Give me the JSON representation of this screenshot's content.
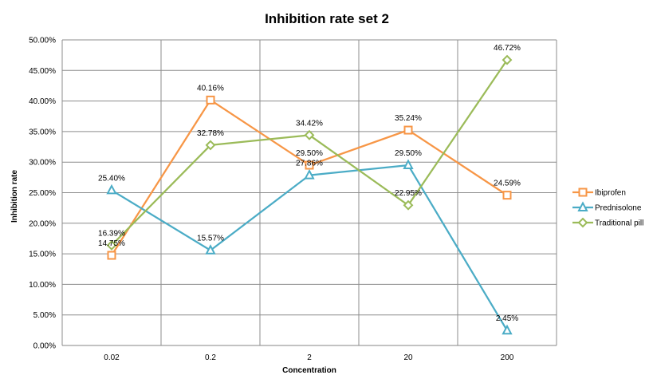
{
  "chart_data": {
    "type": "line",
    "title": "Inhibition rate set 2",
    "xlabel": "Concentration",
    "ylabel": "Inhibition rate",
    "categories": [
      "0.02",
      "0.2",
      "2",
      "20",
      "200"
    ],
    "ylim": [
      0,
      0.5
    ],
    "yticks": [
      0,
      0.05,
      0.1,
      0.15,
      0.2,
      0.25,
      0.3,
      0.35,
      0.4,
      0.45,
      0.5
    ],
    "ytick_labels": [
      "0.00%",
      "5.00%",
      "10.00%",
      "15.00%",
      "20.00%",
      "25.00%",
      "30.00%",
      "35.00%",
      "40.00%",
      "45.00%",
      "50.00%"
    ],
    "grid": true,
    "legend_position": "right",
    "series": [
      {
        "name": "Ibiprofen",
        "color": "#F79646",
        "marker": "square",
        "values": [
          0.1475,
          0.4016,
          0.295,
          0.3524,
          0.2459
        ],
        "labels": [
          "14.75%",
          "40.16%",
          "29.50%",
          "35.24%",
          "24.59%"
        ]
      },
      {
        "name": "Prednisolone",
        "color": "#4BACC6",
        "marker": "triangle",
        "values": [
          0.254,
          0.1557,
          0.2786,
          0.295,
          0.0245
        ],
        "labels": [
          "25.40%",
          "15.57%",
          "27.86%",
          "29.50%",
          "2.45%"
        ]
      },
      {
        "name": "Traditional pill",
        "color": "#9BBB59",
        "marker": "diamond",
        "values": [
          0.1639,
          0.3278,
          0.3442,
          0.2295,
          0.4672
        ],
        "labels": [
          "16.39%",
          "32.78%",
          "34.42%",
          "22.95%",
          "46.72%"
        ]
      }
    ]
  }
}
